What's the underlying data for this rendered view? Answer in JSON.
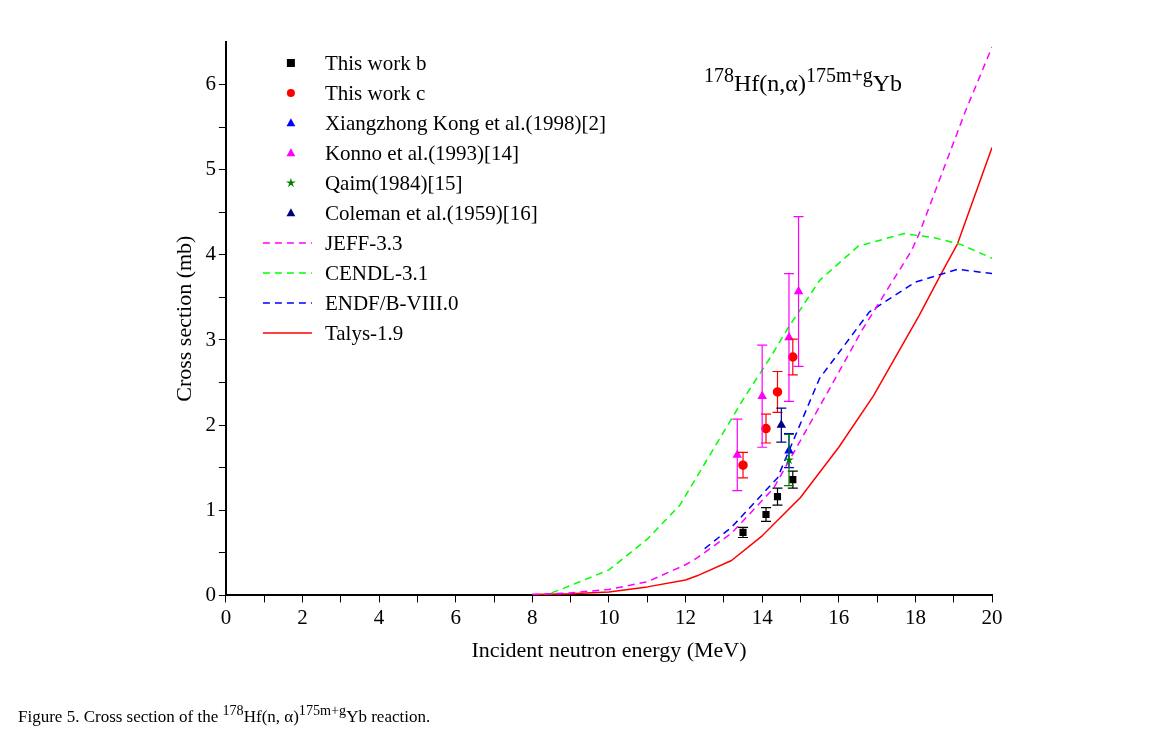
{
  "chart_data": {
    "type": "scatter",
    "xlabel": "Incident neutron energy (MeV)",
    "ylabel": "Cross section (mb)",
    "xlim": [
      0,
      20
    ],
    "ylim": [
      0,
      6.5
    ],
    "xticks": [
      0,
      {
        "value": 1,
        "label": null
      },
      2,
      {
        "value": 3,
        "label": null
      },
      4,
      {
        "value": 5,
        "label": null
      },
      6,
      {
        "value": 7,
        "label": null
      },
      8,
      {
        "value": 9,
        "label": null
      },
      10,
      {
        "value": 11,
        "label": null
      },
      12,
      {
        "value": 13,
        "label": null
      },
      14,
      {
        "value": 15,
        "label": null
      },
      16,
      {
        "value": 17,
        "label": null
      },
      18,
      {
        "value": 19,
        "label": null
      },
      20
    ],
    "yticks": [
      0,
      {
        "value": 0.5,
        "label": null
      },
      1,
      {
        "value": 1.5,
        "label": null
      },
      2,
      {
        "value": 2.5,
        "label": null
      },
      3,
      {
        "value": 3.5,
        "label": null
      },
      4,
      {
        "value": 4.5,
        "label": null
      },
      5,
      {
        "value": 5.5,
        "label": null
      },
      6
    ],
    "grid": false,
    "legend": "top left",
    "annotations": [
      "$^{178}$Hf(n,α)$^{175m+g}$Yb",
      "Figure 5. Cross section of the $^{178}$Hf(n, α)$^{175m+g}$Yb reaction."
    ],
    "series": [
      {
        "name": "This work b",
        "marker": "square",
        "color": "#000000",
        "x": [
          13.5,
          14.1,
          14.4,
          14.8
        ],
        "values": [
          0.74,
          0.95,
          1.16,
          1.36
        ],
        "errors": [
          0.06,
          0.08,
          0.1,
          0.1
        ]
      },
      {
        "name": "This work c",
        "marker": "circle",
        "color": "#ff0000",
        "x": [
          13.5,
          14.1,
          14.4,
          14.8
        ],
        "values": [
          1.53,
          1.96,
          2.39,
          2.8
        ],
        "errors": [
          0.15,
          0.17,
          0.24,
          0.21
        ]
      },
      {
        "name": "Xiangzhong Kong et al.(1998)[2]",
        "marker": "triangle",
        "color": "#0000ff",
        "x": [
          14.7
        ],
        "values": [
          1.7
        ],
        "errors": [
          0.2
        ]
      },
      {
        "name": "Konno et al.(1993)[14]",
        "marker": "triangle",
        "color": "#ff00ff",
        "x": [
          13.35,
          14.0,
          14.7,
          14.95
        ],
        "values": [
          1.65,
          2.34,
          3.03,
          3.57
        ],
        "errors": [
          0.42,
          0.6,
          0.75,
          0.88
        ]
      },
      {
        "name": "Qaim(1984)[15]",
        "marker": "star",
        "color": "#008000",
        "x": [
          14.7
        ],
        "values": [
          1.59
        ],
        "errors": [
          0.3
        ]
      },
      {
        "name": "Coleman et al.(1959)[16]",
        "marker": "triangle",
        "color": "#000080",
        "x": [
          14.5
        ],
        "values": [
          2.0
        ],
        "errors": [
          0.2
        ]
      },
      {
        "name": "JEFF-3.3",
        "type": "line",
        "line_style": "dashed",
        "color": "#ff00ff",
        "x": [
          8,
          9,
          10,
          11,
          12,
          12.3,
          13.2,
          14.3,
          15.8,
          16.6,
          17.9,
          18.1,
          19.3,
          20
        ],
        "values": [
          0.01,
          0.03,
          0.07,
          0.16,
          0.36,
          0.44,
          0.73,
          1.26,
          2.46,
          3.11,
          4.05,
          4.25,
          5.68,
          6.44
        ]
      },
      {
        "name": "CENDL-3.1",
        "type": "line",
        "line_style": "dashed",
        "color": "#00ff00",
        "x": [
          8.5,
          8.8,
          10,
          11,
          11.85,
          12.65,
          13.5,
          14.25,
          14.66,
          15.5,
          16.5,
          17.7,
          18.5,
          19.2,
          20
        ],
        "values": [
          0.03,
          0.08,
          0.3,
          0.66,
          1.06,
          1.66,
          2.3,
          2.82,
          3.13,
          3.7,
          4.1,
          4.25,
          4.2,
          4.12,
          3.96
        ]
      },
      {
        "name": "ENDF/B-VIII.0",
        "type": "line",
        "line_style": "dashed",
        "color": "#0000ff",
        "x": [
          12.5,
          13.2,
          14.4,
          15.5,
          16.8,
          18,
          19.1,
          20
        ],
        "values": [
          0.55,
          0.8,
          1.38,
          2.55,
          3.33,
          3.68,
          3.83,
          3.78
        ]
      },
      {
        "name": "Talys-1.9",
        "type": "line",
        "line_style": "solid",
        "color": "#ff0000",
        "x": [
          8,
          9,
          10,
          11,
          12,
          12.3,
          13.2,
          14,
          15,
          16,
          16.9,
          18.1,
          18.7,
          19.1,
          20
        ],
        "values": [
          0.01,
          0.02,
          0.04,
          0.1,
          0.18,
          0.23,
          0.41,
          0.7,
          1.15,
          1.74,
          2.34,
          3.29,
          3.8,
          4.13,
          5.26
        ]
      }
    ]
  }
}
